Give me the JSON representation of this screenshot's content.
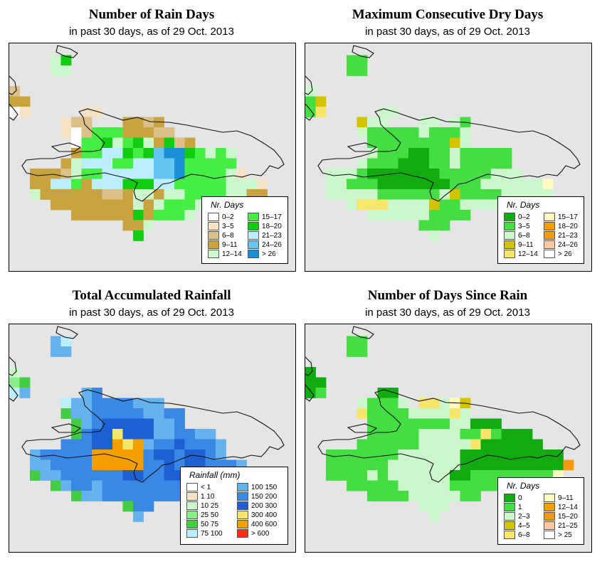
{
  "panels": [
    {
      "id": "rain-days",
      "title": "Number of Rain Days",
      "subtitle": "in past 30 days, as of  29 Oct. 2013",
      "legend": {
        "title": "Nr. Days",
        "items": [
          {
            "label": "0–2",
            "color": "#ffffff"
          },
          {
            "label": "3–5",
            "color": "#f3e2c4"
          },
          {
            "label": "6–8",
            "color": "#dcc08a"
          },
          {
            "label": "9–11",
            "color": "#c9a33f"
          },
          {
            "label": "12–14",
            "color": "#ccf7cc"
          },
          {
            "label": "15–17",
            "color": "#44ee44"
          },
          {
            "label": "18–20",
            "color": "#11cc11"
          },
          {
            "label": "21–23",
            "color": "#bbeeff"
          },
          {
            "label": "24–26",
            "color": "#66c4f2"
          },
          {
            "label": "> 26",
            "color": "#1a8fd6"
          }
        ]
      },
      "grid": [
        "..........................",
        "....eg....................",
        "....ee....................",
        "............................",
        "c.........................",
        "dd........................",
        "ab.....bb.................",
        ".....bcc...ddcd...........",
        ".....bacfffdddcc..........",
        "......affgefgedgcd........",
        "......dffhhgfgijjgfefe....",
        ".....dehhhffhhiijfffff....",
        "..dddceffhhhhhiijffffeb...",
        "..ddhhfdhhhggghhfffffeeeb.",
        "..eddddddccdeedeeffffeedd.",
        "....ddddddddedefffeeeeeee.",
        "......ddddddgdfffe........",
        "...........dde............",
        "............g............."
      ]
    },
    {
      "id": "dry-days",
      "title": "Maximum Consecutive Dry Days",
      "subtitle": "in past 30 days, as of  29 Oct. 2013",
      "legend": {
        "title": "Nr. Days",
        "items": [
          {
            "label": "0–2",
            "color": "#11aa11"
          },
          {
            "label": "3–5",
            "color": "#44dd44"
          },
          {
            "label": "6–8",
            "color": "#ccf7cc"
          },
          {
            "label": "9–11",
            "color": "#d4c400"
          },
          {
            "label": "12–14",
            "color": "#f6e66c"
          },
          {
            "label": "15–17",
            "color": "#fff8c0"
          },
          {
            "label": "18–20",
            "color": "#f2a000"
          },
          {
            "label": "21–23",
            "color": "#f39a14"
          },
          {
            "label": "24–26",
            "color": "#ffc8a0"
          },
          {
            "label": "> 26",
            "color": "#ffffff"
          }
        ]
      },
      "grid": [
        "..........................",
        "....bb....................",
        "....bb....................",
        "..........................",
        "c.........................",
        "bd........................",
        "be.....cc.................",
        ".....dcc...cc.cb..........",
        ".....cbbbbbcbbbc..........",
        "......bbbbbbbbdc..........",
        "......cbbbaabbcbbbbb......",
        ".....cbbbaaabbcbbbbb......",
        "..cccbaaaaaaabbbbbccc.....",
        "..ccbbbaaaaaaabbbccccccf..",
        "..cccccbbbbbbcdbbbbccccc..",
        "....ceeeccccdbbcccccccc...",
        "......ccccccbbbb..........",
        "...........bbb............",
        "............c............."
      ]
    },
    {
      "id": "total-rainfall",
      "title": "Total Accumulated Rainfall",
      "subtitle": "in past 30 days, as of  29 Oct. 2013",
      "legend": {
        "title": "Rainfall (mm)",
        "items": [
          {
            "label": "< 1",
            "color": "#ffffff"
          },
          {
            "label": "1   10",
            "color": "#f3e2c4"
          },
          {
            "label": "10   25",
            "color": "#ccf7cc"
          },
          {
            "label": "25   50",
            "color": "#88ee88"
          },
          {
            "label": "50   75",
            "color": "#44cc44"
          },
          {
            "label": "75  100",
            "color": "#bbeeff"
          },
          {
            "label": "100  150",
            "color": "#66b2ee"
          },
          {
            "label": "150  200",
            "color": "#3a88e6"
          },
          {
            "label": "200  300",
            "color": "#1e5fd2"
          },
          {
            "label": "300  400",
            "color": "#f6e66c"
          },
          {
            "label": "400  600",
            "color": "#f2a000"
          },
          {
            "label": "> 600",
            "color": "#ff3010"
          }
        ]
      },
      "grid": [
        "..........................",
        "....gf....................",
        "....gg....................",
        "..........................",
        "c.........................",
        "de........................",
        "fg.....gh.................",
        ".....fgghhhhggg...........",
        ".....egghhhhhgghh.........",
        "......eghiiiiiggh.........",
        "......ehiijiiigghhgg......",
        ".....hhhiikjkghhihhhg.....",
        "..ghhhhhkkkkkhiihiihg.....",
        "..gghhhhkkkkkhhihiihhhg...",
        "..egghhhhhhiihhiiiiihggh..",
        "....eghhghhhhhhhhhhh......",
        "......egghhhhhhhh.........",
        "...........ehh............",
        "............g............."
      ]
    },
    {
      "id": "days-since-rain",
      "title": "Number of Days Since Rain",
      "subtitle": "in past 30 days, as of  29 Oct. 2013",
      "legend": {
        "title": "Nr. Days",
        "items": [
          {
            "label": "0",
            "color": "#11aa11"
          },
          {
            "label": "1",
            "color": "#44dd44"
          },
          {
            "label": "2–3",
            "color": "#ccf7cc"
          },
          {
            "label": "4–5",
            "color": "#d4c400"
          },
          {
            "label": "6–8",
            "color": "#f6e66c"
          },
          {
            "label": "9–11",
            "color": "#fff8c0"
          },
          {
            "label": "12–14",
            "color": "#f2a000"
          },
          {
            "label": "15–20",
            "color": "#f39a14"
          },
          {
            "label": "21–25",
            "color": "#ffc8a0"
          },
          {
            "label": "> 25",
            "color": "#ffffff"
          }
        ]
      },
      "grid": [
        "..........................",
        "....bb....................",
        "....bb....................",
        "..........................",
        "a.........................",
        "aa........................",
        "ab.....aa.................",
        ".....cbbbc.eecfd..........",
        ".....ebbbbccccec..........",
        "......bbbbbbbbccaaa.......",
        "......bbbbbccccbbebaaa....",
        ".....bbbbbbccccceaaaaaa...",
        "..bbbbbbbccccccaaaaaaaaaa.",
        "..bbbbbbcccccccaaaaaaaaaah",
        "..bbbbcbccccccaabbbbbbbbf.",
        "....bbbbbcccccbbbbbbbbb...",
        "......bbbbcccccbb.........",
        "...........ccc............",
        "............c............."
      ]
    }
  ]
}
